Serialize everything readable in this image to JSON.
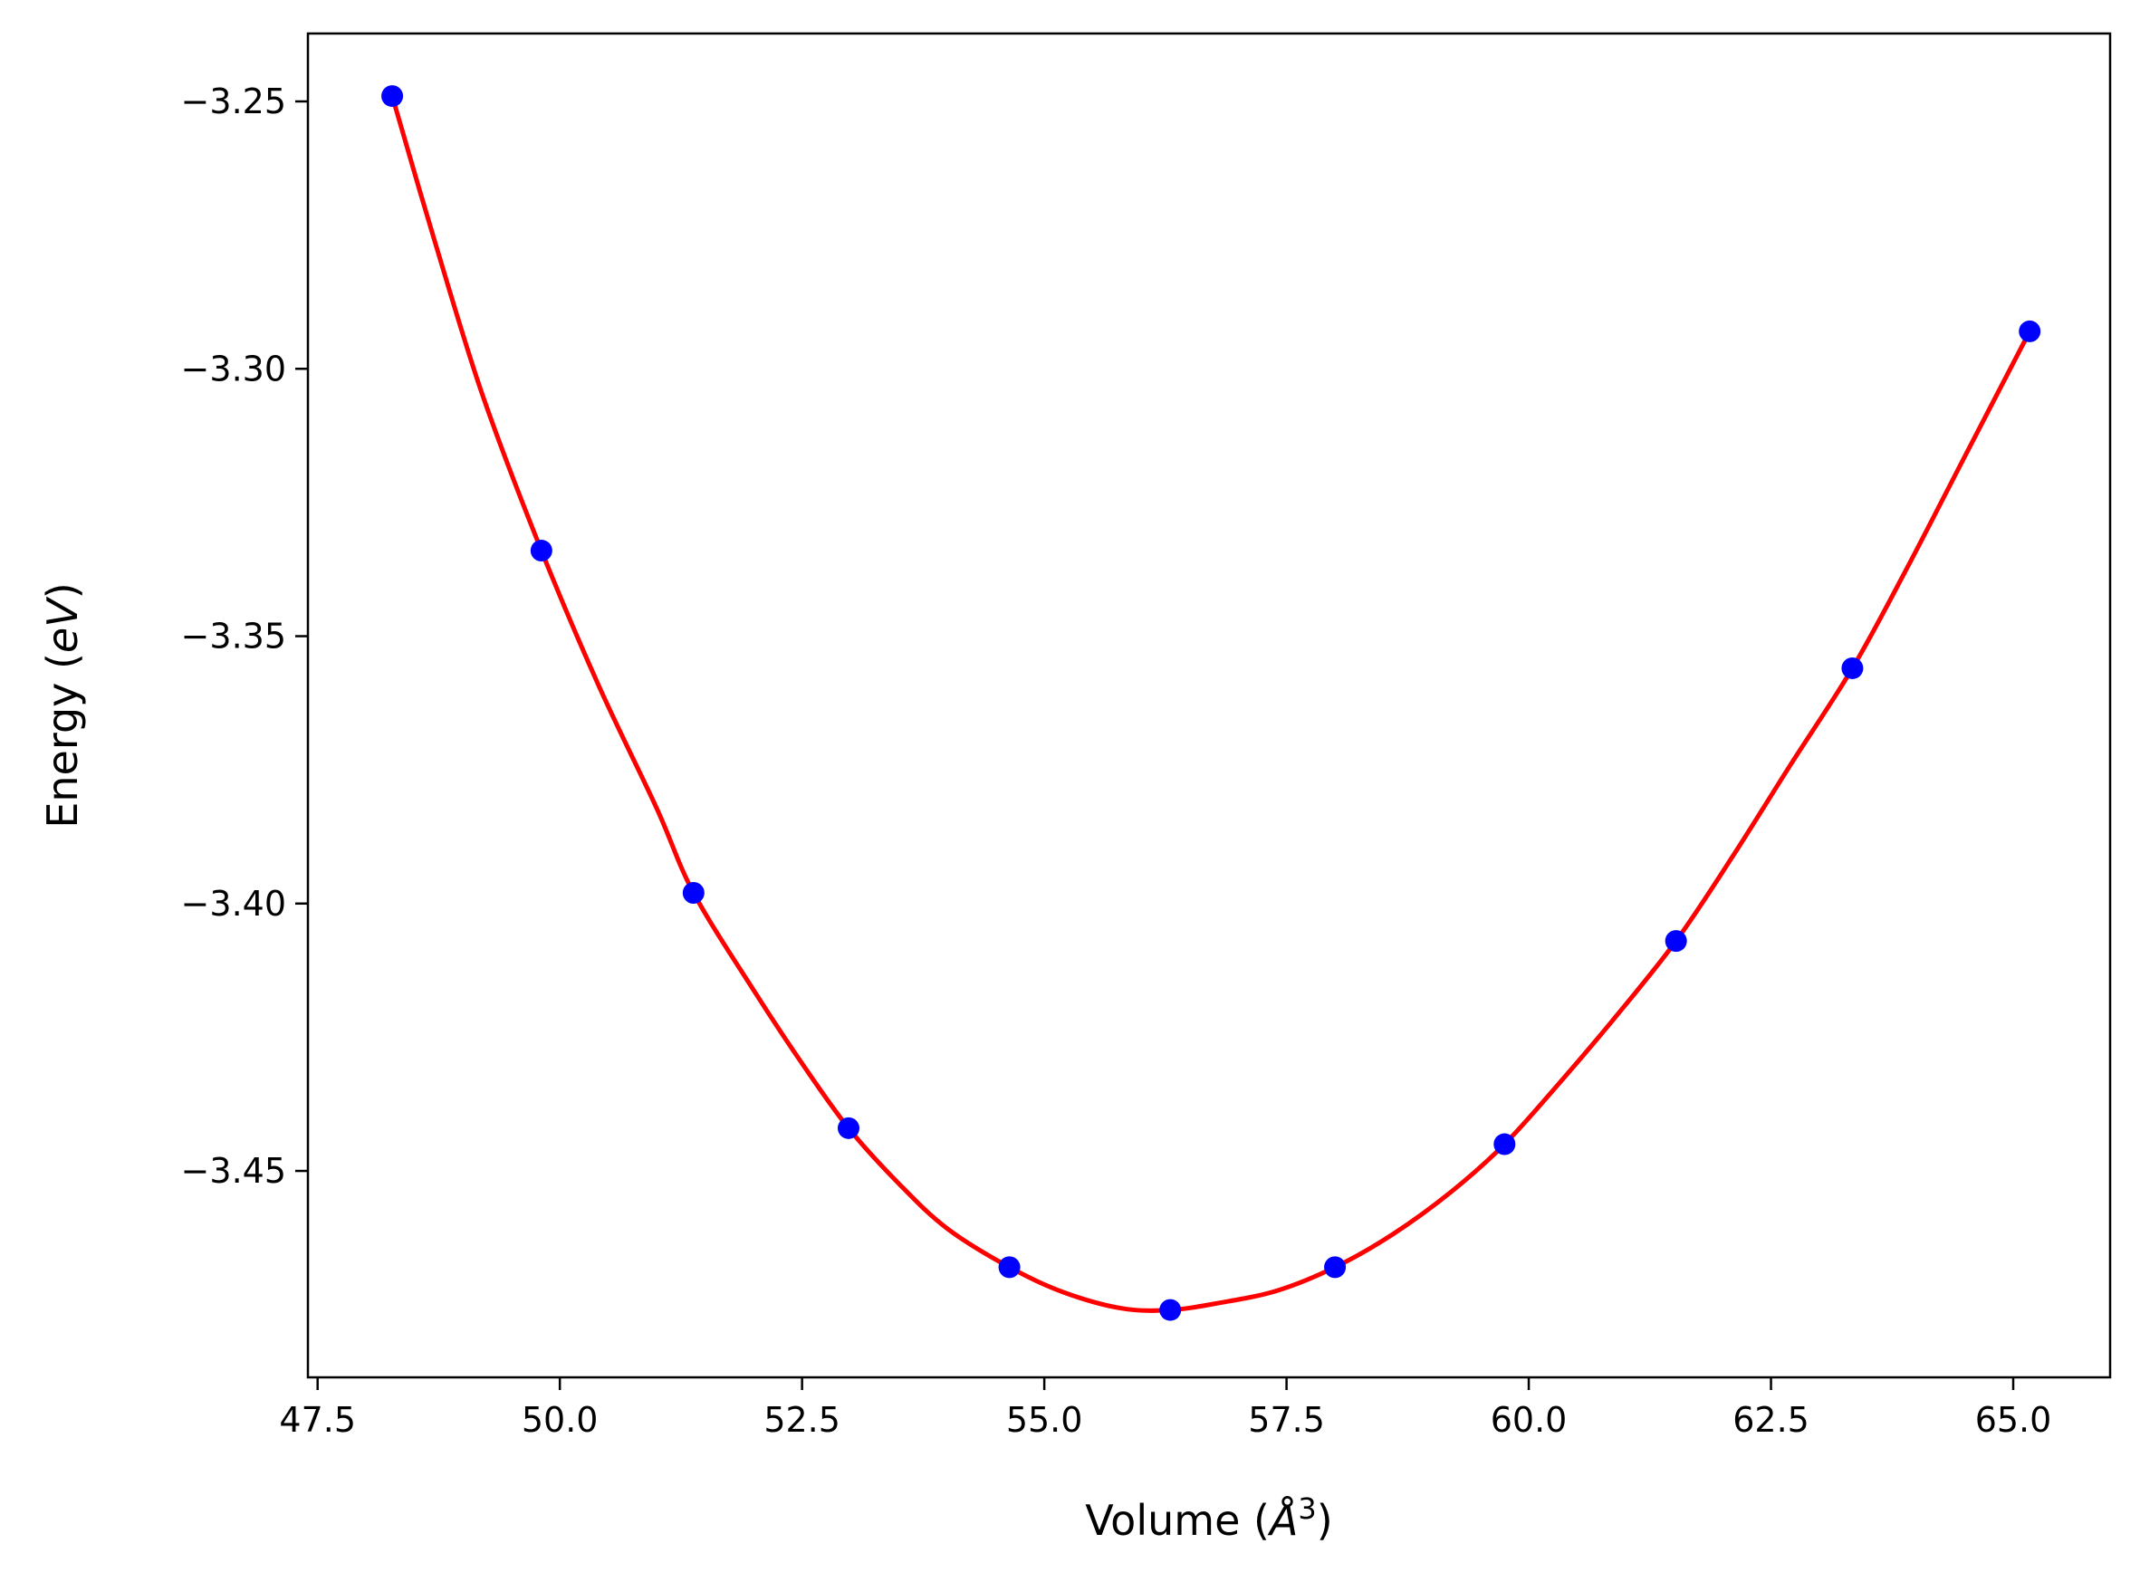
{
  "chart_data": {
    "type": "scatter",
    "title": "",
    "xlabel": "Volume (",
    "xlabel_symbol": "Å",
    "xlabel_exponent": "3",
    "xlabel_close": ")",
    "ylabel": "Energy (",
    "ylabel_unit": "eV",
    "ylabel_close": ")",
    "xlim": [
      47.4,
      66.0
    ],
    "ylim": [
      -3.4886,
      -3.2373
    ],
    "x_ticks": [
      47.5,
      50.0,
      52.5,
      55.0,
      57.5,
      60.0,
      62.5,
      65.0
    ],
    "x_tick_labels": [
      "47.5",
      "50.0",
      "52.5",
      "55.0",
      "57.5",
      "60.0",
      "62.5",
      "65.0"
    ],
    "y_ticks": [
      -3.25,
      -3.3,
      -3.35,
      -3.4,
      -3.45
    ],
    "y_tick_labels": [
      "−3.25",
      "−3.30",
      "−3.35",
      "−3.40",
      "−3.45"
    ],
    "grid": false,
    "legend": "none",
    "series": [
      {
        "kind": "points",
        "color": "#0000ff",
        "x": [
          48.27,
          49.81,
          51.38,
          52.98,
          54.64,
          56.3,
          58.0,
          59.75,
          61.52,
          63.34,
          65.17
        ],
        "y": [
          -3.249,
          -3.334,
          -3.398,
          -3.442,
          -3.468,
          -3.476,
          -3.468,
          -3.445,
          -3.407,
          -3.356,
          -3.293
        ]
      },
      {
        "kind": "fit-curve",
        "color": "#ff0000",
        "x": [
          48.27,
          48.7,
          49.2,
          49.81,
          50.4,
          51.0,
          51.38,
          52.0,
          52.5,
          52.98,
          53.5,
          54.0,
          54.64,
          55.2,
          55.8,
          56.3,
          56.8,
          57.4,
          58.0,
          58.6,
          59.2,
          59.75,
          60.3,
          60.9,
          61.52,
          62.1,
          62.7,
          63.34,
          63.9,
          64.5,
          65.17
        ],
        "y": [
          -3.249,
          -3.2756,
          -3.3048,
          -3.334,
          -3.3592,
          -3.3822,
          -3.398,
          -3.4162,
          -3.4299,
          -3.442,
          -3.4524,
          -3.4608,
          -3.468,
          -3.4727,
          -3.4757,
          -3.476,
          -3.4747,
          -3.4724,
          -3.468,
          -3.4618,
          -3.4539,
          -3.445,
          -3.4339,
          -3.4211,
          -3.407,
          -3.3913,
          -3.3741,
          -3.356,
          -3.3374,
          -3.3164,
          -3.293
        ]
      }
    ]
  }
}
